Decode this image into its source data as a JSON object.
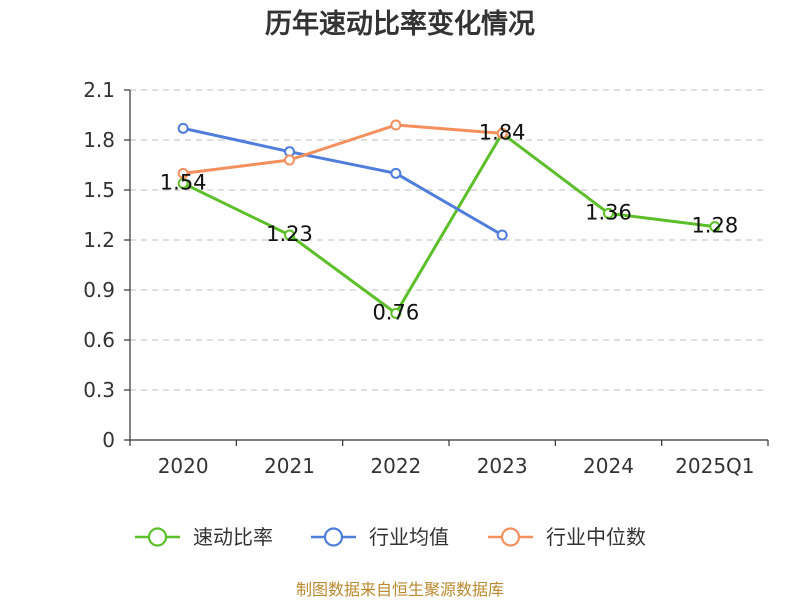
{
  "footer": "制图数据来自恒生聚源数据库",
  "colors": {
    "footer_text": "#b8892e",
    "axis": "#333333",
    "grid": "#cccccc"
  },
  "chart_data": {
    "type": "line",
    "title": "历年速动比率变化情况",
    "categories": [
      "2020",
      "2021",
      "2022",
      "2023",
      "2024",
      "2025Q1"
    ],
    "ylim": [
      0,
      2.1
    ],
    "yticks": [
      "0",
      "0.3",
      "0.6",
      "0.9",
      "1.2",
      "1.5",
      "1.8",
      "2.1"
    ],
    "grid": true,
    "legend": "bottom",
    "series": [
      {
        "name": "速动比率",
        "color": "#5cbf2a",
        "values": [
          1.54,
          1.23,
          0.76,
          1.84,
          1.36,
          1.28
        ],
        "data_labels": [
          "1.54",
          "1.23",
          "0.76",
          "1.84",
          "1.36",
          "1.28"
        ]
      },
      {
        "name": "行业均值",
        "color": "#4e7ddb",
        "values": [
          1.87,
          1.73,
          1.6,
          1.23,
          null,
          null
        ]
      },
      {
        "name": "行业中位数",
        "color": "#f68f5e",
        "values": [
          1.6,
          1.68,
          1.89,
          1.84,
          null,
          null
        ]
      }
    ]
  }
}
